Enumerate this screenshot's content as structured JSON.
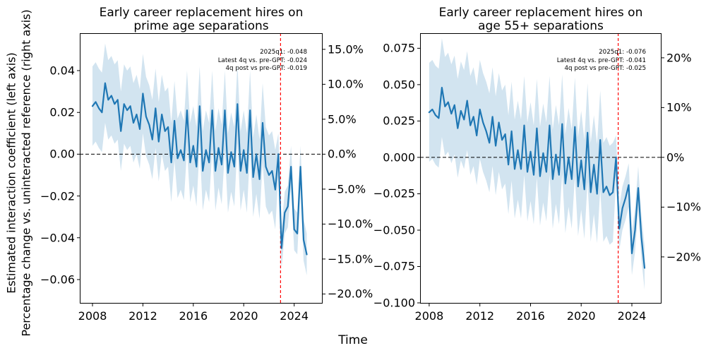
{
  "figure": {
    "xlabel": "Time",
    "ylabel_lines": [
      "Estimated interaction coefficient (left axis)",
      "Percentage change vs. uninteracted reference (right axis)"
    ],
    "colors": {
      "line": "#1f77b4",
      "band": "#d2e4f0",
      "event_line": "#ff0000",
      "zero_line": "#000000",
      "text": "#000000"
    }
  },
  "chart_data": [
    {
      "type": "line",
      "title_lines": [
        "Early career replacement hires on",
        "prime age separations"
      ],
      "series_name": "Estimated interaction coefficient",
      "x_start": 2008.0,
      "x_step_years": 0.25,
      "x_unit": "quarter",
      "x_end_label": "2025q1",
      "values": [
        0.023,
        0.025,
        0.022,
        0.02,
        0.034,
        0.026,
        0.028,
        0.024,
        0.026,
        0.011,
        0.024,
        0.021,
        0.023,
        0.015,
        0.019,
        0.012,
        0.029,
        0.018,
        0.014,
        0.007,
        0.022,
        0.006,
        0.019,
        0.011,
        0.013,
        -0.004,
        0.016,
        -0.002,
        0.002,
        -0.003,
        0.021,
        -0.004,
        0.004,
        -0.006,
        0.023,
        -0.008,
        0.002,
        -0.004,
        0.021,
        -0.008,
        0.003,
        -0.005,
        0.021,
        -0.009,
        0.001,
        -0.006,
        0.024,
        -0.008,
        0.002,
        -0.009,
        0.021,
        -0.011,
        0.0,
        -0.012,
        0.015,
        -0.006,
        -0.01,
        -0.008,
        -0.017,
        0.0,
        -0.045,
        -0.028,
        -0.025,
        -0.006,
        -0.036,
        -0.038,
        -0.006,
        -0.041,
        -0.048
      ],
      "band": {
        "pre_gpt_halfwidth": 0.019,
        "post_gpt_halfwidth": 0.01,
        "post_start_index": 59
      },
      "event_line_x": 2022.92,
      "annotation_lines": [
        "2025q1: -0.048",
        "Latest 4q vs. pre-GPT: -0.024",
        "4q post vs pre-GPT: -0.019"
      ],
      "xlim": [
        2006.99,
        2026.26
      ],
      "ylim_left": [
        -0.0715,
        0.0579
      ],
      "xticks": {
        "values": [
          2008,
          2012,
          2016,
          2020,
          2024
        ],
        "labels": [
          "2008",
          "2012",
          "2016",
          "2020",
          "2024"
        ]
      },
      "yticks_left": {
        "values": [
          0.04,
          0.02,
          0.0,
          -0.02,
          -0.04,
          -0.06
        ],
        "labels": [
          "0.04",
          "0.02",
          "0.00",
          "−0.02",
          "−0.04",
          "−0.06"
        ]
      },
      "yticks_right": {
        "values_pct": [
          15,
          10,
          5,
          0,
          -5,
          -10,
          -15,
          -20
        ],
        "labels": [
          "15.0%",
          "10.0%",
          "5.0%",
          "0.0%",
          "−5.0%",
          "−10.0%",
          "−15.0%",
          "−20.0%"
        ]
      },
      "right_axis_coef_per_pct": 0.003345,
      "grid": false,
      "legend": null
    },
    {
      "type": "line",
      "title_lines": [
        "Early career replacement hires on",
        "age 55+ separations"
      ],
      "series_name": "Estimated interaction coefficient",
      "x_start": 2008.0,
      "x_step_years": 0.25,
      "x_unit": "quarter",
      "x_end_label": "2025q1",
      "values": [
        0.031,
        0.033,
        0.029,
        0.027,
        0.048,
        0.035,
        0.038,
        0.03,
        0.036,
        0.02,
        0.032,
        0.026,
        0.039,
        0.022,
        0.028,
        0.015,
        0.033,
        0.024,
        0.018,
        0.01,
        0.028,
        0.008,
        0.024,
        0.012,
        0.016,
        -0.005,
        0.018,
        -0.008,
        0.005,
        -0.008,
        0.022,
        -0.01,
        0.004,
        -0.012,
        0.02,
        -0.013,
        0.003,
        -0.01,
        0.022,
        -0.015,
        0.002,
        -0.012,
        0.023,
        -0.018,
        0.0,
        -0.015,
        0.021,
        -0.02,
        -0.002,
        -0.022,
        0.017,
        -0.024,
        -0.005,
        -0.025,
        0.012,
        -0.024,
        -0.02,
        -0.026,
        -0.024,
        0.0,
        -0.049,
        -0.035,
        -0.028,
        -0.019,
        -0.066,
        -0.05,
        -0.021,
        -0.055,
        -0.076
      ],
      "band": {
        "pre_gpt_halfwidth": 0.034,
        "post_gpt_halfwidth": 0.015,
        "post_start_index": 59
      },
      "event_line_x": 2022.92,
      "annotation_lines": [
        "2025q1: -0.076",
        "Latest 4q vs. pre-GPT: -0.041",
        "4q post vs pre-GPT: -0.025"
      ],
      "xlim": [
        2007.28,
        2026.34
      ],
      "ylim_left": [
        -0.1005,
        0.0854
      ],
      "xticks": {
        "values": [
          2008,
          2012,
          2016,
          2020,
          2024
        ],
        "labels": [
          "2008",
          "2012",
          "2016",
          "2020",
          "2024"
        ]
      },
      "yticks_left": {
        "values": [
          0.075,
          0.05,
          0.025,
          0.0,
          -0.025,
          -0.05,
          -0.075,
          -0.1
        ],
        "labels": [
          "0.075",
          "0.050",
          "0.025",
          "0.000",
          "−0.025",
          "−0.050",
          "−0.075",
          "−0.100"
        ]
      },
      "yticks_right": {
        "values_pct": [
          20,
          10,
          0,
          -10,
          -20
        ],
        "labels": [
          "20%",
          "10%",
          "0%",
          "−10%",
          "−20%"
        ]
      },
      "right_axis_coef_per_pct": 0.003422,
      "grid": false,
      "legend": null
    }
  ]
}
